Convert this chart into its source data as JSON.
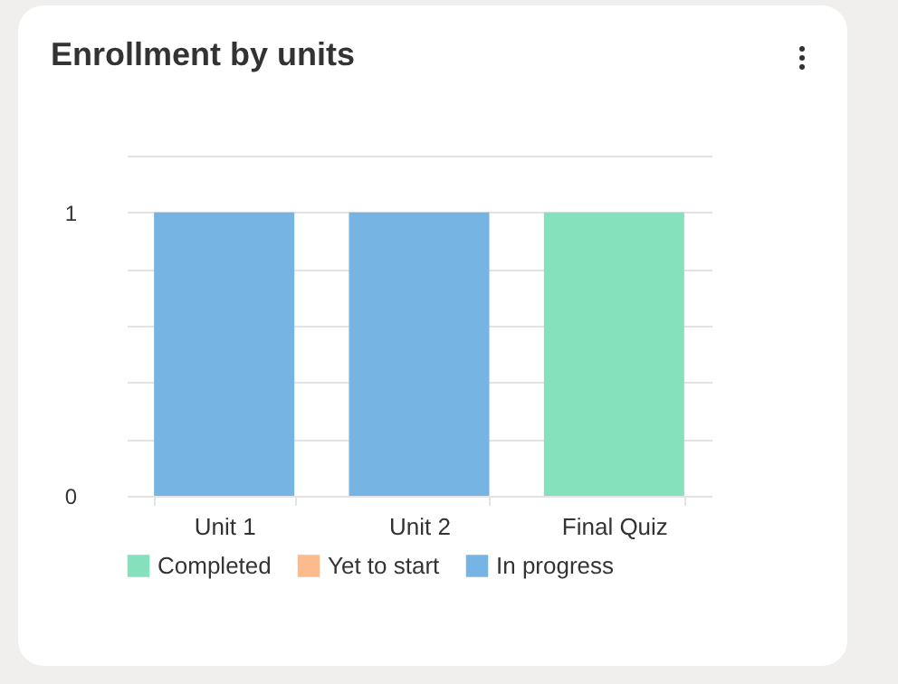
{
  "chart_data": {
    "type": "bar",
    "title": "Enrollment by units",
    "categories": [
      "Unit 1",
      "Unit 2",
      "Final Quiz"
    ],
    "stacked": true,
    "series": [
      {
        "name": "Completed",
        "color": "#84e1bc",
        "values": [
          0,
          0,
          1
        ]
      },
      {
        "name": "Yet to start",
        "color": "#fdba8c",
        "values": [
          0,
          0,
          0
        ]
      },
      {
        "name": "In progress",
        "color": "#76b4e3",
        "values": [
          1,
          1,
          0
        ]
      }
    ],
    "ylim": [
      0,
      1.2
    ],
    "yticks": [
      0,
      {
        "value": 0.2,
        "label": null
      },
      {
        "value": 0.4,
        "label": null
      },
      {
        "value": 0.6,
        "label": null
      },
      {
        "value": 0.8,
        "label": null
      },
      1,
      {
        "value": 1.2,
        "label": null
      }
    ],
    "grid": "y",
    "legend": "bottom"
  }
}
